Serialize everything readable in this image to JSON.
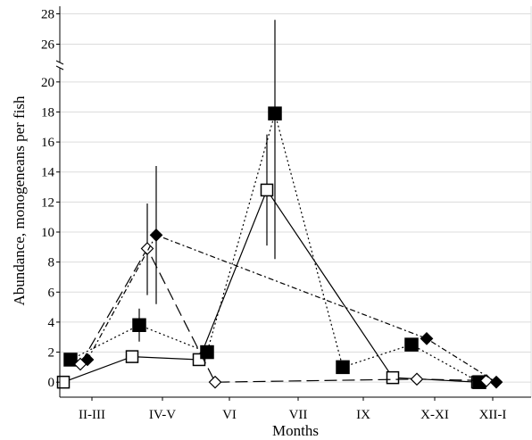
{
  "chart_data": {
    "type": "line",
    "title": "",
    "xlabel": "Months",
    "ylabel": "Abundance, monogeneans per fish",
    "categories": [
      "II-III",
      "IV-V",
      "VI",
      "VII",
      "IX",
      "X-XI",
      "XII-I"
    ],
    "y_ticks_lower": [
      "0",
      "2",
      "4",
      "6",
      "8",
      "10",
      "12",
      "14",
      "16",
      "18",
      "20"
    ],
    "y_ticks_upper": [
      "26",
      "28"
    ],
    "ylim_lower": [
      -1,
      21
    ],
    "ylim_upper": [
      24.5,
      28.5
    ],
    "axis_break_at": 21,
    "grid": "horizontal",
    "legend": "none",
    "series": [
      {
        "marker": "open-square",
        "line_style": "solid",
        "points": [
          {
            "category": "II-III",
            "value": 0.0
          },
          {
            "category": "IV-V",
            "value": 1.7
          },
          {
            "category": "VI",
            "value": 1.5
          },
          {
            "category": "VII",
            "value": 12.8,
            "error_low": 9.1,
            "error_high": 16.5
          },
          {
            "category": "X-XI",
            "value": 0.3
          },
          {
            "category": "XII-I",
            "value": 0.0
          }
        ]
      },
      {
        "marker": "filled-square",
        "line_style": "dotted",
        "points": [
          {
            "category": "II-III",
            "value": 1.5
          },
          {
            "category": "IV-V",
            "value": 3.8,
            "error_low": 2.7,
            "error_high": 4.9
          },
          {
            "category": "VI",
            "value": 2.0
          },
          {
            "category": "VII",
            "value": 17.9,
            "error_low": 8.2,
            "error_high": 27.6
          },
          {
            "category": "IX",
            "value": 1.0
          },
          {
            "category": "X-XI",
            "value": 2.5
          },
          {
            "category": "XII-I",
            "value": 0.0
          }
        ]
      },
      {
        "marker": "open-diamond",
        "line_style": "long-dash",
        "points": [
          {
            "category": "II-III",
            "value": 1.2
          },
          {
            "category": "IV-V",
            "value": 8.9,
            "error_low": 5.8,
            "error_high": 11.9
          },
          {
            "category": "VI",
            "value": 0.0
          },
          {
            "category": "X-XI",
            "value": 0.2
          },
          {
            "category": "XII-I",
            "value": 0.1
          }
        ]
      },
      {
        "marker": "filled-diamond",
        "line_style": "dash-dot",
        "points": [
          {
            "category": "II-III",
            "value": 1.5
          },
          {
            "category": "IV-V",
            "value": 9.8,
            "error_low": 5.2,
            "error_high": 14.4
          },
          {
            "category": "X-XI",
            "value": 2.9
          },
          {
            "category": "XII-I",
            "value": 0.0
          }
        ]
      }
    ]
  }
}
